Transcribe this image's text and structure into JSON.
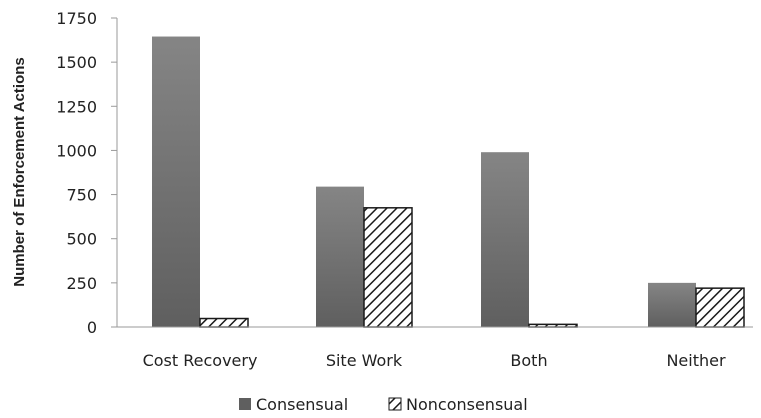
{
  "chart_data": {
    "type": "bar",
    "title": "",
    "xlabel": "",
    "ylabel": "Number of Enforcement Actions",
    "categories": [
      "Cost Recovery",
      "Site Work",
      "Both",
      "Neither"
    ],
    "series": [
      {
        "name": "Consensual",
        "values": [
          1645,
          795,
          990,
          250
        ]
      },
      {
        "name": "Nonconsensual",
        "values": [
          48,
          675,
          15,
          220
        ]
      }
    ],
    "ylim": [
      0,
      1750
    ],
    "yticks": [
      0,
      250,
      500,
      750,
      1000,
      1250,
      1500,
      1750
    ],
    "grid": false,
    "legend": {
      "position": "bottom",
      "labels": [
        "Consensual",
        "Nonconsensual"
      ]
    },
    "colors": {
      "consensual_top": "#858585",
      "consensual_bottom": "#5f5f5f",
      "hatch": "#1a1a1a",
      "axis": "#9a9a9a"
    }
  }
}
